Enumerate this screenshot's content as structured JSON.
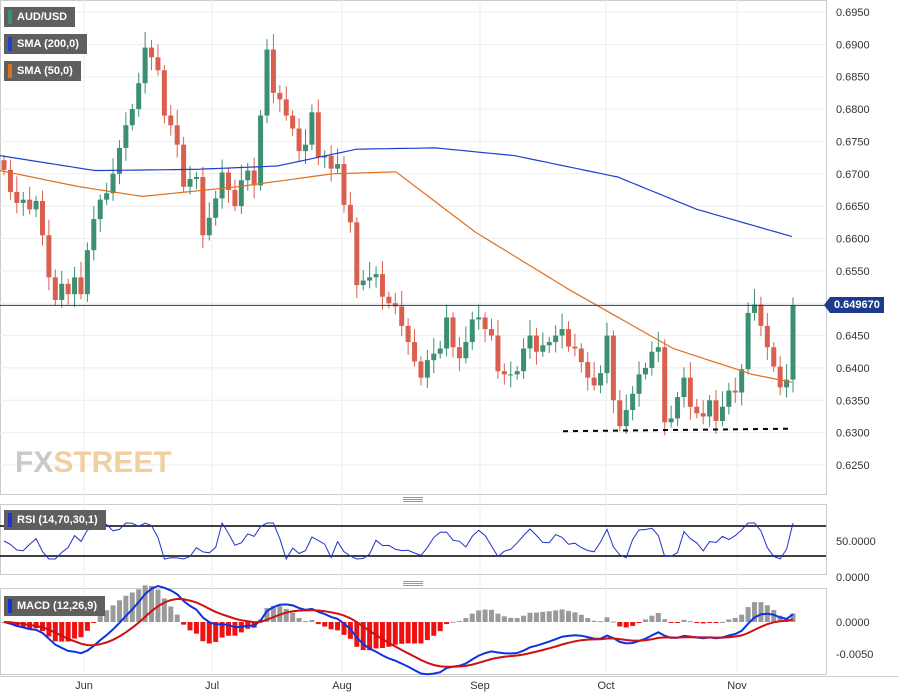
{
  "legend": {
    "symbol": "AUD/USD",
    "sma200": "SMA (200,0)",
    "sma50": "SMA (50,0)",
    "rsi": "RSI (14,70,30,1)",
    "macd": "MACD (12,26,9)"
  },
  "watermark": {
    "fx": "FX",
    "street": "STREET"
  },
  "current_price_label": "0.649670",
  "colors": {
    "up": "#3d8f72",
    "down": "#d9604f",
    "sma200": "#1f3fd1",
    "sma50": "#e0701e",
    "rsi": "#2233cc",
    "macd": "#1133dd",
    "signal": "#cc1111",
    "hist_up": "#9a9a9a",
    "hist_down": "#ee1111",
    "price_line": "#1e3a8a"
  },
  "chart_data": {
    "type": "candlestick",
    "title": "AUD/USD",
    "x_ticks": [
      "Jun",
      "Jul",
      "Aug",
      "Sep",
      "Oct",
      "Nov"
    ],
    "price_axis": {
      "ticks": [
        "0.6950",
        "0.6900",
        "0.6850",
        "0.6800",
        "0.6750",
        "0.6700",
        "0.6650",
        "0.6600",
        "0.6550",
        "0.6500",
        "0.6450",
        "0.6400",
        "0.6350",
        "0.6300",
        "0.6250"
      ],
      "range": [
        0.6225,
        0.6965
      ]
    },
    "current_price": 0.64967,
    "support_level": 0.6303,
    "candles_close": [
      0.6706,
      0.6672,
      0.6655,
      0.666,
      0.6645,
      0.6658,
      0.6605,
      0.654,
      0.6505,
      0.653,
      0.6514,
      0.654,
      0.6514,
      0.6582,
      0.663,
      0.666,
      0.667,
      0.67,
      0.674,
      0.6775,
      0.68,
      0.684,
      0.6895,
      0.688,
      0.686,
      0.679,
      0.6775,
      0.6745,
      0.668,
      0.6692,
      0.6695,
      0.6605,
      0.6632,
      0.6662,
      0.6702,
      0.6675,
      0.665,
      0.669,
      0.6705,
      0.6682,
      0.679,
      0.6892,
      0.6825,
      0.6815,
      0.679,
      0.677,
      0.6735,
      0.6745,
      0.6795,
      0.6725,
      0.6728,
      0.6708,
      0.6715,
      0.6652,
      0.6625,
      0.6528,
      0.6535,
      0.654,
      0.6545,
      0.651,
      0.65,
      0.6495,
      0.6465,
      0.644,
      0.641,
      0.6385,
      0.6412,
      0.6422,
      0.643,
      0.6478,
      0.6432,
      0.6415,
      0.644,
      0.6475,
      0.6478,
      0.646,
      0.645,
      0.6395,
      0.639,
      0.639,
      0.6395,
      0.643,
      0.645,
      0.6425,
      0.6435,
      0.644,
      0.645,
      0.646,
      0.6433,
      0.643,
      0.6409,
      0.6385,
      0.6373,
      0.6392,
      0.645,
      0.635,
      0.631,
      0.6335,
      0.636,
      0.639,
      0.64,
      0.6425,
      0.6432,
      0.6316,
      0.6322,
      0.6355,
      0.6385,
      0.634,
      0.633,
      0.6325,
      0.635,
      0.6318,
      0.634,
      0.6365,
      0.6362,
      0.6398,
      0.6485,
      0.6498,
      0.6465,
      0.6432,
      0.6402,
      0.637,
      0.6382,
      0.6497
    ],
    "sma200": {
      "from": 0.6728,
      "mid": 0.674,
      "to": 0.6603
    },
    "sma50": {
      "from": 0.671,
      "to": 0.6378
    },
    "rsi_axis": {
      "ticks": [
        "50.0000"
      ],
      "bands": [
        70,
        30
      ]
    },
    "macd_axis": {
      "ticks": [
        "0.0000",
        "-0.0050"
      ]
    }
  }
}
